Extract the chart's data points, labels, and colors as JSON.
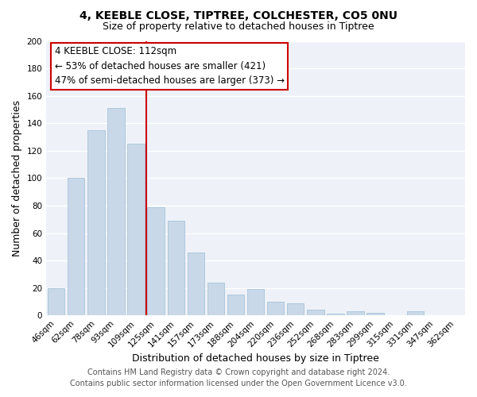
{
  "title": "4, KEEBLE CLOSE, TIPTREE, COLCHESTER, CO5 0NU",
  "subtitle": "Size of property relative to detached houses in Tiptree",
  "xlabel": "Distribution of detached houses by size in Tiptree",
  "ylabel": "Number of detached properties",
  "bar_labels": [
    "46sqm",
    "62sqm",
    "78sqm",
    "93sqm",
    "109sqm",
    "125sqm",
    "141sqm",
    "157sqm",
    "173sqm",
    "188sqm",
    "204sqm",
    "220sqm",
    "236sqm",
    "252sqm",
    "268sqm",
    "283sqm",
    "299sqm",
    "315sqm",
    "331sqm",
    "347sqm",
    "362sqm"
  ],
  "bar_values": [
    20,
    100,
    135,
    151,
    125,
    79,
    69,
    46,
    24,
    15,
    19,
    10,
    9,
    4,
    1,
    3,
    2,
    0,
    3,
    0,
    0
  ],
  "bar_color": "#c8d8e8",
  "bar_edge_color": "#afc8dc",
  "vline_color": "#cc0000",
  "vline_x_index": 4,
  "ylim": [
    0,
    200
  ],
  "yticks": [
    0,
    20,
    40,
    60,
    80,
    100,
    120,
    140,
    160,
    180,
    200
  ],
  "annotation_title": "4 KEEBLE CLOSE: 112sqm",
  "annotation_line1": "← 53% of detached houses are smaller (421)",
  "annotation_line2": "47% of semi-detached houses are larger (373) →",
  "annotation_box_facecolor": "#ffffff",
  "annotation_box_edgecolor": "#cc0000",
  "footer1": "Contains HM Land Registry data © Crown copyright and database right 2024.",
  "footer2": "Contains public sector information licensed under the Open Government Licence v3.0.",
  "title_fontsize": 10,
  "subtitle_fontsize": 9,
  "xlabel_fontsize": 9,
  "ylabel_fontsize": 9,
  "tick_fontsize": 7.5,
  "annotation_fontsize": 8.5,
  "footer_fontsize": 7
}
